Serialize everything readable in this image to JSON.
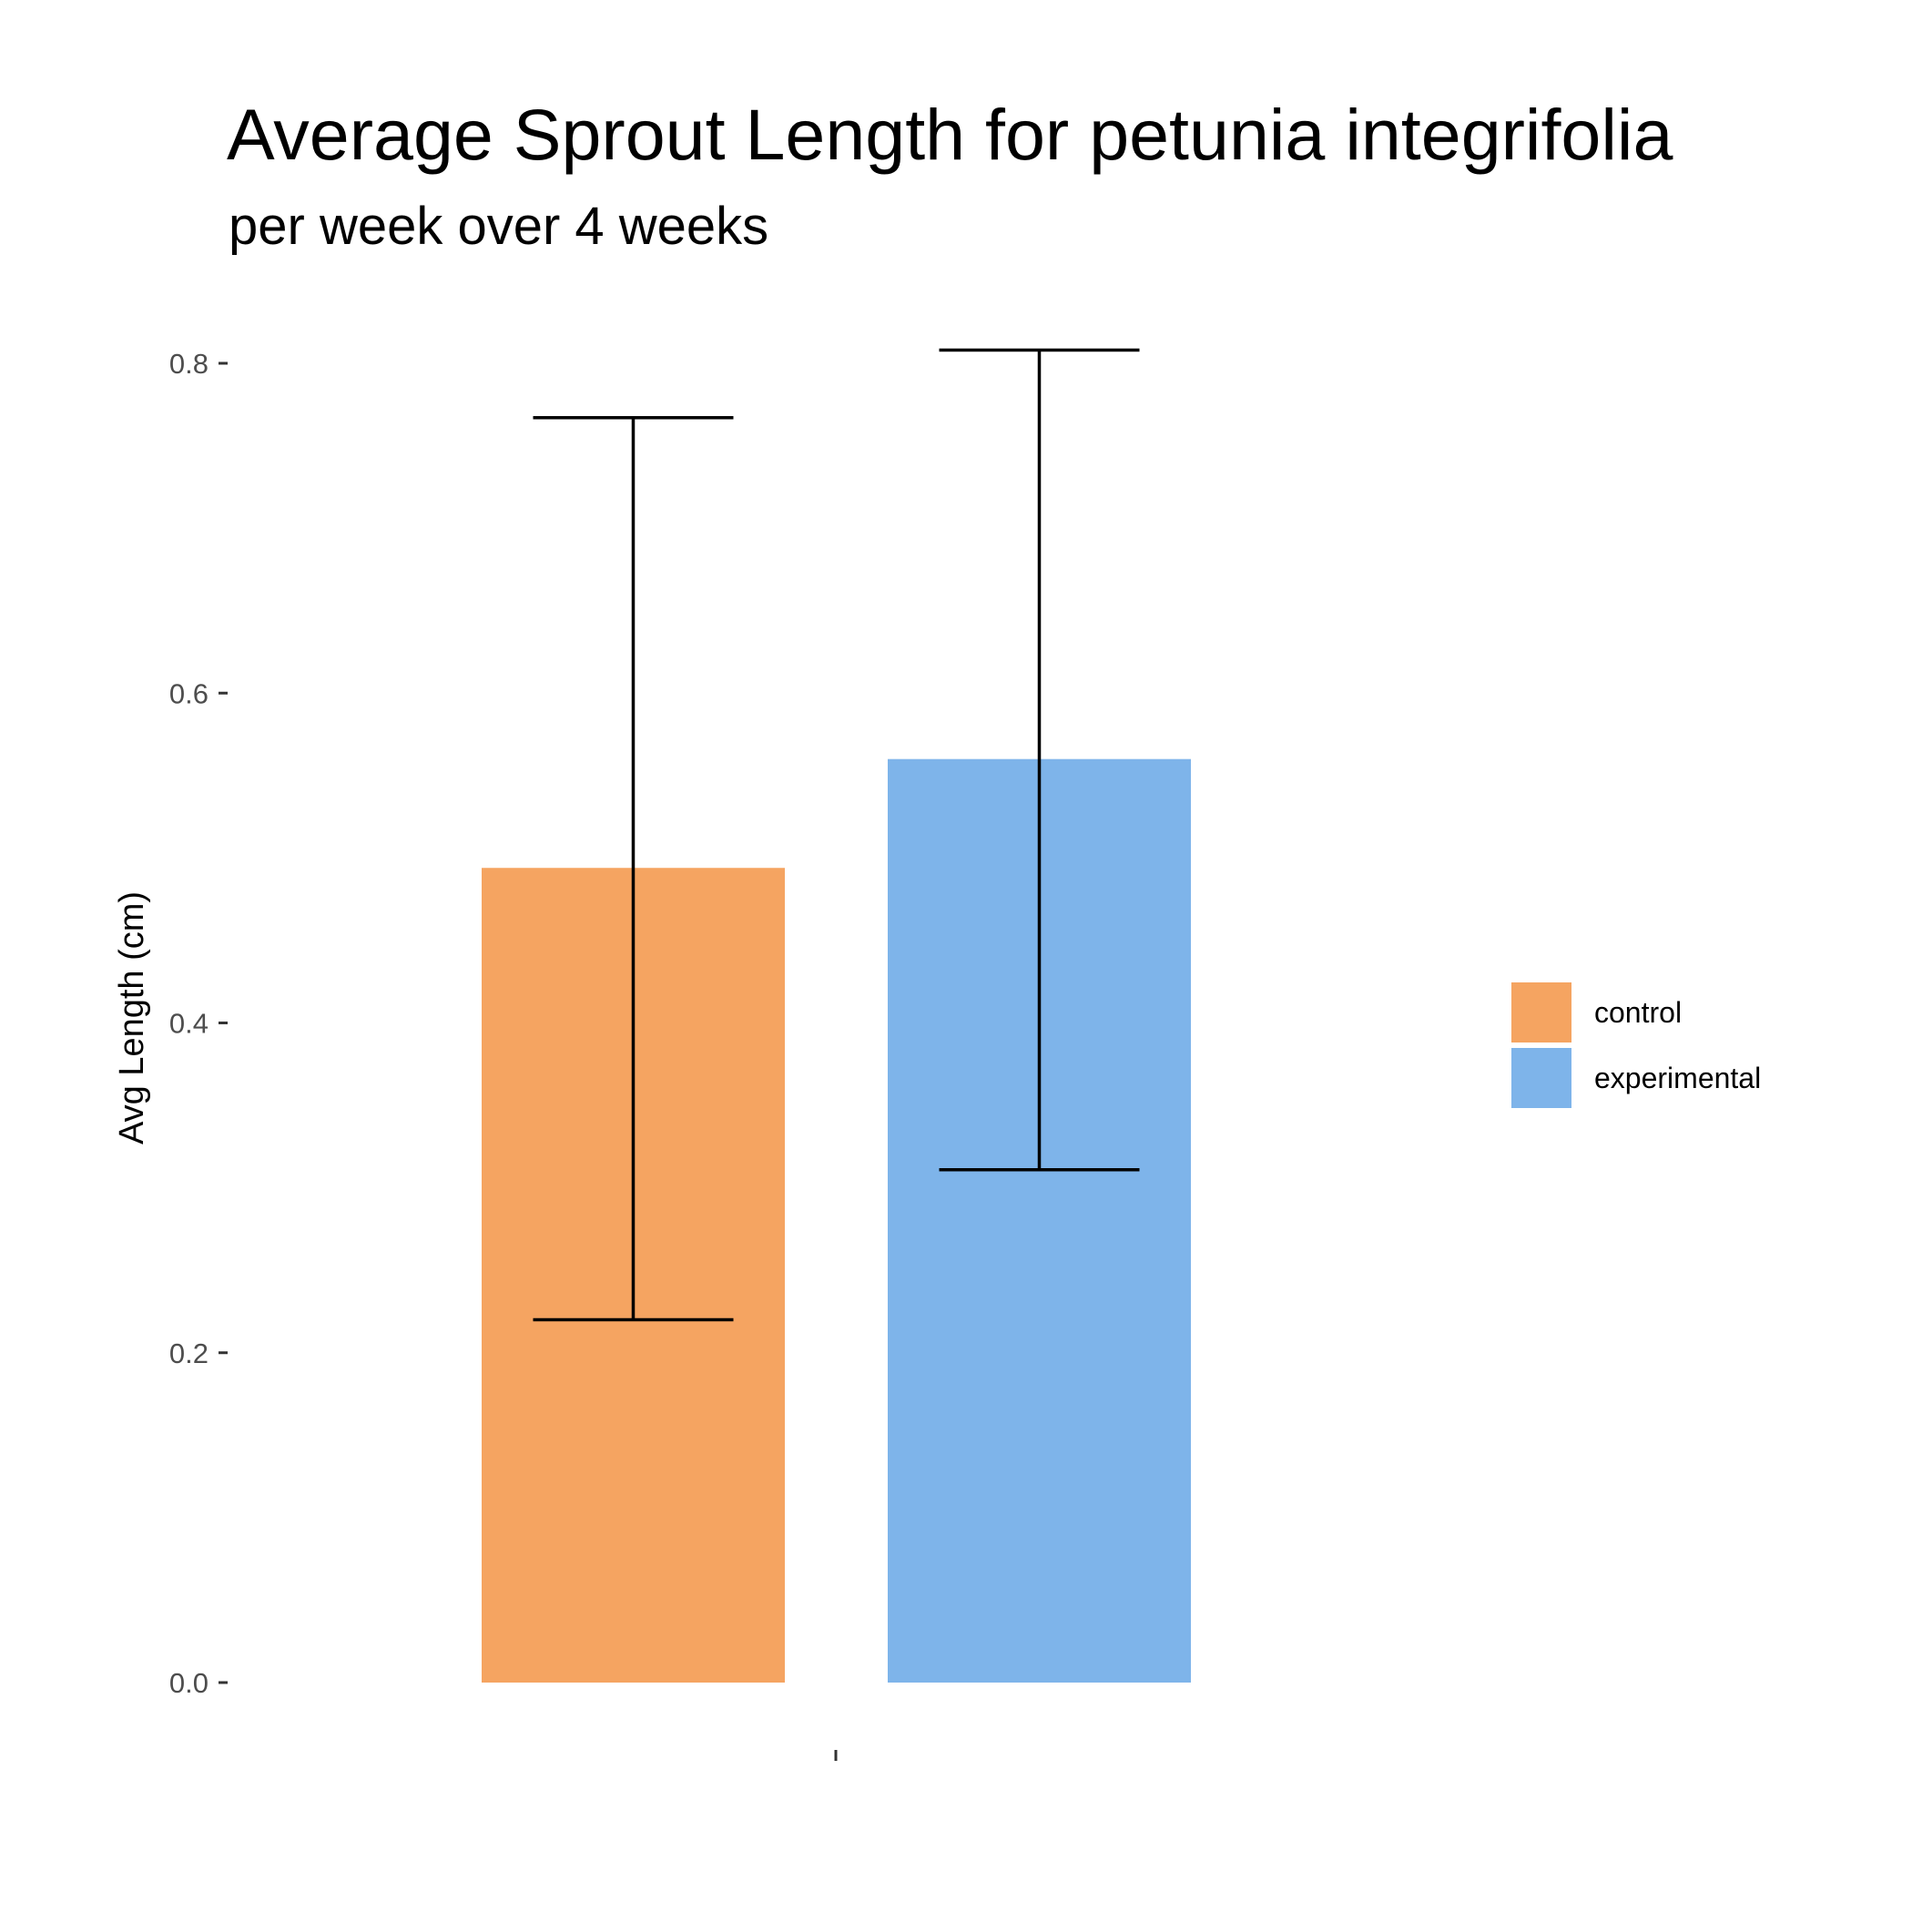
{
  "chart_data": {
    "type": "bar",
    "title": "Average Sprout Length for petunia integrifolia",
    "subtitle": "per week over 4 weeks",
    "xlabel": "",
    "ylabel": "Avg Length (cm)",
    "categories": [
      ""
    ],
    "ylim": [
      0,
      0.82
    ],
    "yticks": [
      "0.0",
      "0.2",
      "0.4",
      "0.6",
      "0.8"
    ],
    "ytick_values": [
      0.0,
      0.2,
      0.4,
      0.6,
      0.8
    ],
    "grid": false,
    "legend_position": "right",
    "series": [
      {
        "name": "control",
        "value": 0.494,
        "error_low": 0.22,
        "error_high": 0.767,
        "color": "#F5A461"
      },
      {
        "name": "experimental",
        "value": 0.56,
        "error_low": 0.311,
        "error_high": 0.808,
        "color": "#7EB4EA"
      }
    ]
  }
}
